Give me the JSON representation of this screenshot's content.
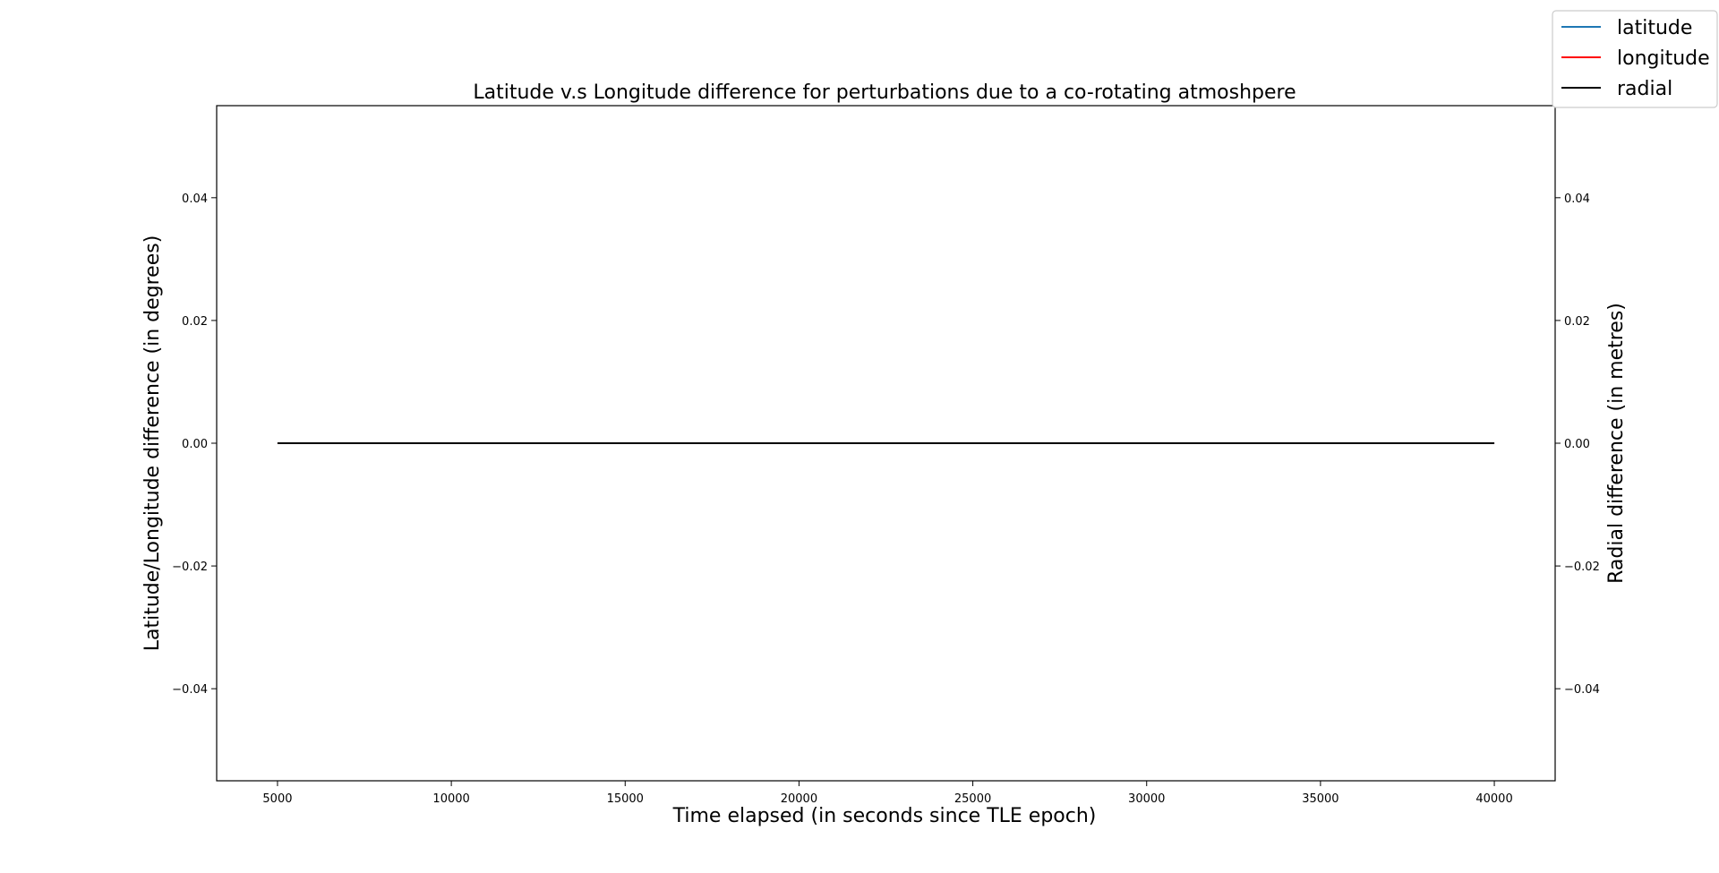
{
  "chart_data": {
    "type": "line",
    "title": "Latitude v.s Longitude difference for perturbations due to a co-rotating atmoshpere",
    "xlabel": "Time elapsed (in seconds since TLE epoch)",
    "ylabel": "Latitude/Longitude difference (in degrees)",
    "y2label": "Radial difference (in metres)",
    "xlim": [
      3250,
      41750
    ],
    "ylim": [
      -0.055,
      0.055
    ],
    "y2lim": [
      -0.055,
      0.055
    ],
    "xticks": [
      5000,
      10000,
      15000,
      20000,
      25000,
      30000,
      35000,
      40000
    ],
    "xtick_labels": [
      "5000",
      "10000",
      "15000",
      "20000",
      "25000",
      "30000",
      "35000",
      "40000"
    ],
    "yticks": [
      -0.04,
      -0.02,
      0.0,
      0.02,
      0.04
    ],
    "ytick_labels": [
      "−0.04",
      "−0.02",
      "0.00",
      "0.02",
      "0.04"
    ],
    "y2ticks": [
      -0.04,
      -0.02,
      0.0,
      0.02,
      0.04
    ],
    "y2tick_labels": [
      "−0.04",
      "−0.02",
      "0.00",
      "0.02",
      "0.04"
    ],
    "grid": false,
    "legend_placement": "top-right",
    "series": [
      {
        "name": "latitude",
        "color": "#1f77b4",
        "axis": "left",
        "x": [
          5000,
          40000
        ],
        "y": [
          0,
          0
        ]
      },
      {
        "name": "longitude",
        "color": "#ff0000",
        "axis": "left",
        "x": [
          5000,
          40000
        ],
        "y": [
          0,
          0
        ]
      },
      {
        "name": "radial",
        "color": "#000000",
        "axis": "right",
        "x": [
          5000,
          40000
        ],
        "y": [
          0,
          0
        ]
      }
    ]
  }
}
